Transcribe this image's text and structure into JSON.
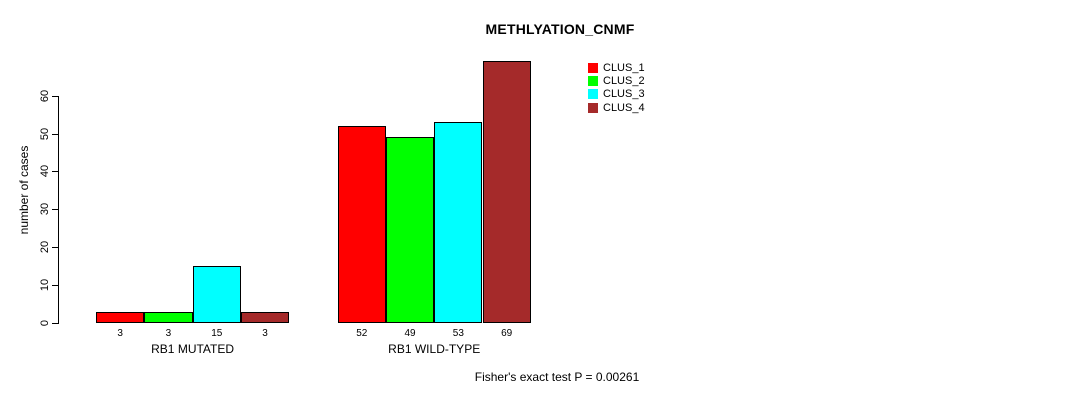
{
  "chart_data": {
    "type": "bar",
    "title": "METHLYATION_CNMF",
    "ylabel": "number of cases",
    "xlabel": "",
    "categories": [
      "RB1 MUTATED",
      "RB1 WILD-TYPE"
    ],
    "series": [
      {
        "name": "CLUS_1",
        "color": "#ff0000",
        "values": [
          3,
          52
        ]
      },
      {
        "name": "CLUS_2",
        "color": "#00ff00",
        "values": [
          3,
          49
        ]
      },
      {
        "name": "CLUS_3",
        "color": "#00ffff",
        "values": [
          15,
          53
        ]
      },
      {
        "name": "CLUS_4",
        "color": "#a52a2a",
        "values": [
          3,
          69
        ]
      }
    ],
    "yticks": [
      0,
      10,
      20,
      30,
      40,
      50,
      60
    ],
    "ylim": [
      0,
      70
    ],
    "grid": false,
    "legend_position": "top-right",
    "bar_border_color": "#000000",
    "background_color": "#ffffff",
    "annotation": "Fisher's exact test P = 0.00261"
  }
}
